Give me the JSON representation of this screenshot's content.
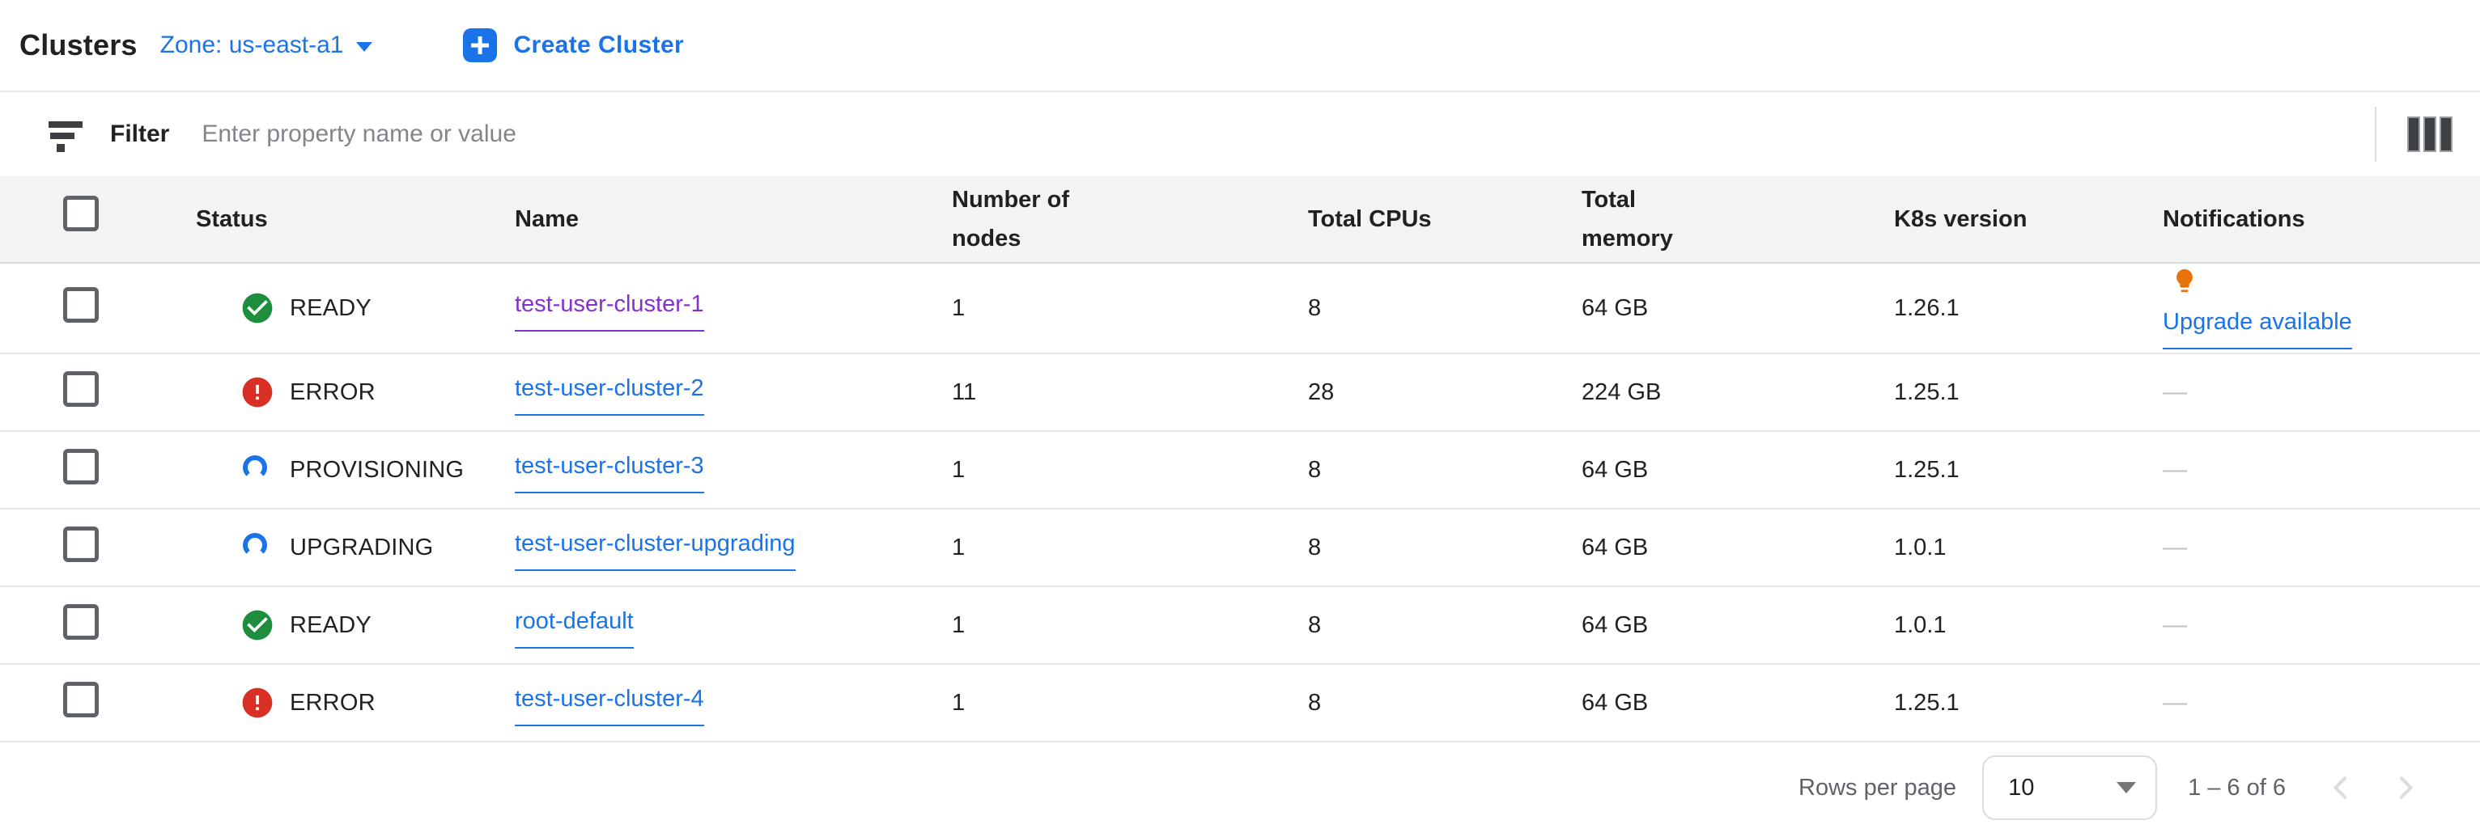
{
  "header": {
    "title": "Clusters",
    "zone_selector": "Zone: us-east-a1",
    "create_button": "Create Cluster"
  },
  "filter_bar": {
    "label": "Filter",
    "placeholder": "Enter property name or value"
  },
  "table": {
    "columns": {
      "status": "Status",
      "name": "Name",
      "nodes": "Number of nodes",
      "cpus": "Total CPUs",
      "memory": "Total memory",
      "k8s": "K8s version",
      "notifications": "Notifications"
    },
    "rows": [
      {
        "status": "READY",
        "status_kind": "ready",
        "name": "test-user-cluster-1",
        "name_visited": true,
        "nodes": "1",
        "cpus": "8",
        "memory": "64 GB",
        "k8s": "1.26.1",
        "notification": "Upgrade available",
        "notification_kind": "upgrade"
      },
      {
        "status": "ERROR",
        "status_kind": "error",
        "name": "test-user-cluster-2",
        "name_visited": false,
        "nodes": "11",
        "cpus": "28",
        "memory": "224 GB",
        "k8s": "1.25.1",
        "notification": "—",
        "notification_kind": "none"
      },
      {
        "status": "PROVISIONING",
        "status_kind": "progress",
        "name": "test-user-cluster-3",
        "name_visited": false,
        "nodes": "1",
        "cpus": "8",
        "memory": "64 GB",
        "k8s": "1.25.1",
        "notification": "—",
        "notification_kind": "none"
      },
      {
        "status": "UPGRADING",
        "status_kind": "progress",
        "name": "test-user-cluster-upgrading",
        "name_visited": false,
        "nodes": "1",
        "cpus": "8",
        "memory": "64 GB",
        "k8s": "1.0.1",
        "notification": "—",
        "notification_kind": "none"
      },
      {
        "status": "READY",
        "status_kind": "ready",
        "name": "root-default",
        "name_visited": false,
        "nodes": "1",
        "cpus": "8",
        "memory": "64 GB",
        "k8s": "1.0.1",
        "notification": "—",
        "notification_kind": "none"
      },
      {
        "status": "ERROR",
        "status_kind": "error",
        "name": "test-user-cluster-4",
        "name_visited": false,
        "nodes": "1",
        "cpus": "8",
        "memory": "64 GB",
        "k8s": "1.25.1",
        "notification": "—",
        "notification_kind": "none"
      }
    ]
  },
  "footer": {
    "rows_per_page_label": "Rows per page",
    "rows_per_page_value": "10",
    "range_label": "1 – 6 of 6"
  },
  "colors": {
    "accent_blue": "#1a73e8",
    "visited_purple": "#8430ce",
    "status_ready_green": "#1e8e3e",
    "status_error_red": "#d93025",
    "bulb_orange": "#e8710a"
  }
}
